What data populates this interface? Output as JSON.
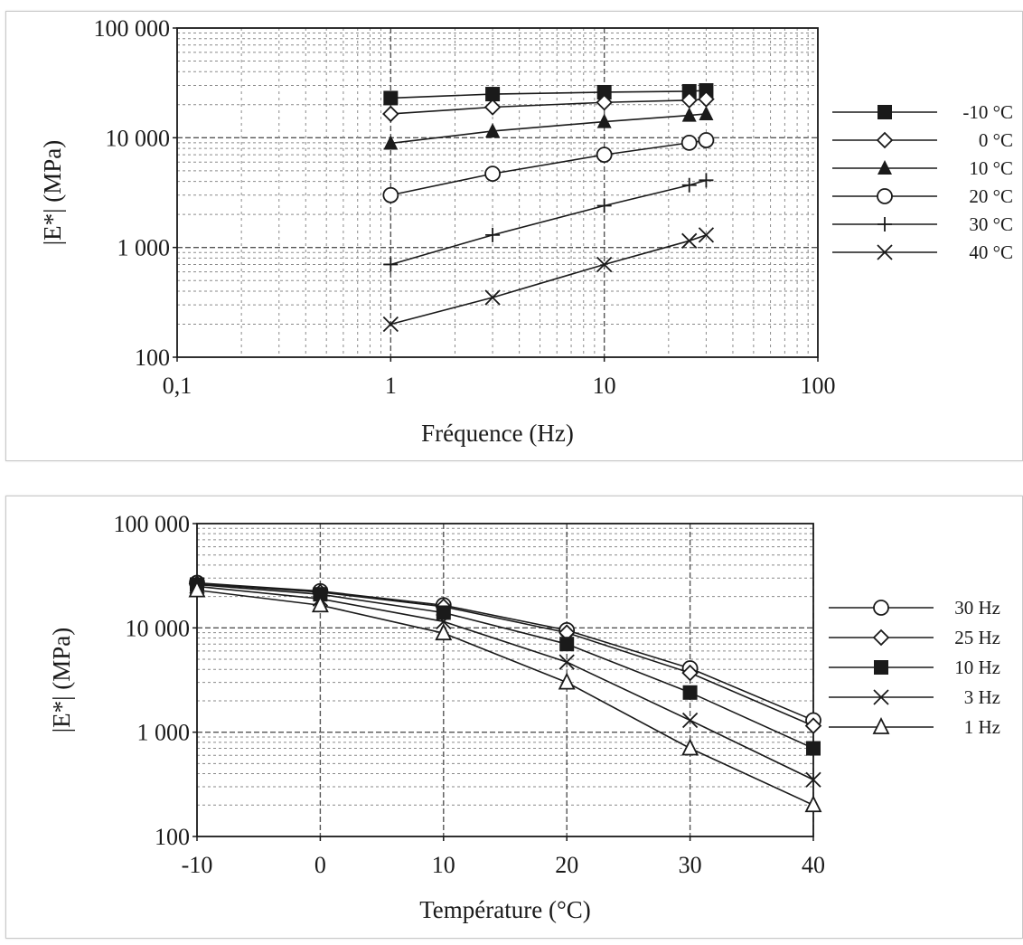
{
  "chart_data": [
    {
      "type": "line",
      "xlabel": "Fréquence (Hz)",
      "ylabel": "|E*| (MPa)",
      "xscale": "log",
      "yscale": "log",
      "xlim": [
        0.1,
        100
      ],
      "ylim": [
        100,
        100000
      ],
      "x_ticks": [
        "0,1",
        "1",
        "10",
        "100"
      ],
      "y_ticks": [
        "100",
        "1 000",
        "10 000",
        "100 000"
      ],
      "grid": true,
      "legend_position": "right",
      "x": [
        1,
        3,
        10,
        25,
        30
      ],
      "series": [
        {
          "name": "-10 °C",
          "marker": "filled-square",
          "values": [
            23000,
            25000,
            26000,
            26500,
            27000
          ]
        },
        {
          "name": "0 °C",
          "marker": "open-diamond",
          "values": [
            16500,
            19000,
            21000,
            22000,
            22500
          ]
        },
        {
          "name": "10 °C",
          "marker": "filled-triangle",
          "values": [
            8900,
            11500,
            14000,
            16000,
            16500
          ]
        },
        {
          "name": "20 °C",
          "marker": "open-circle",
          "values": [
            3000,
            4700,
            7000,
            9000,
            9500
          ]
        },
        {
          "name": "30 °C",
          "marker": "plus",
          "values": [
            700,
            1300,
            2400,
            3700,
            4100
          ]
        },
        {
          "name": "40 °C",
          "marker": "cross",
          "values": [
            200,
            350,
            700,
            1150,
            1300
          ]
        }
      ]
    },
    {
      "type": "line",
      "xlabel": "Température (°C)",
      "ylabel": "|E*| (MPa)",
      "xscale": "linear",
      "yscale": "log",
      "xlim": [
        -10,
        40
      ],
      "ylim": [
        100,
        100000
      ],
      "x_ticks": [
        "-10",
        "0",
        "10",
        "20",
        "30",
        "40"
      ],
      "y_ticks": [
        "100",
        "1 000",
        "10 000",
        "100 000"
      ],
      "grid": true,
      "legend_position": "right",
      "x": [
        -10,
        0,
        10,
        20,
        30,
        40
      ],
      "series": [
        {
          "name": "30 Hz",
          "marker": "open-circle",
          "values": [
            27000,
            22500,
            16500,
            9500,
            4100,
            1300
          ]
        },
        {
          "name": "25 Hz",
          "marker": "open-diamond",
          "values": [
            26500,
            22000,
            16000,
            9000,
            3700,
            1150
          ]
        },
        {
          "name": "10 Hz",
          "marker": "filled-square",
          "values": [
            26000,
            21000,
            14000,
            7000,
            2400,
            700
          ]
        },
        {
          "name": "3 Hz",
          "marker": "cross",
          "values": [
            25000,
            19000,
            11500,
            4700,
            1300,
            350
          ]
        },
        {
          "name": "1 Hz",
          "marker": "open-triangle",
          "values": [
            23000,
            16500,
            8900,
            3000,
            700,
            200
          ]
        }
      ]
    }
  ]
}
